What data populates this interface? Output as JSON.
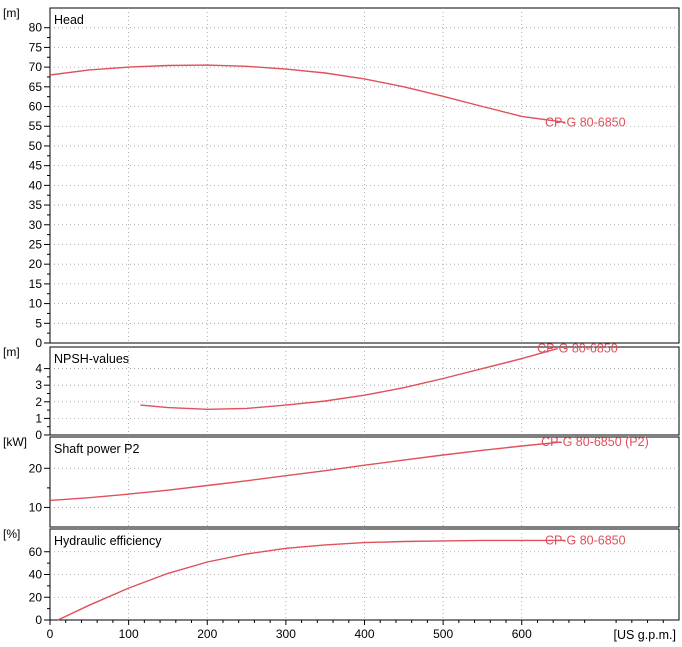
{
  "chart_data": {
    "type": "line",
    "xlim": [
      0,
      800
    ],
    "x_ticks": [
      0,
      100,
      200,
      300,
      400,
      500,
      600
    ],
    "x_unit": "[US g.p.m.]",
    "curve_color": "#e0505a",
    "panels": [
      {
        "title": "Head",
        "unit": "[m]",
        "ylim": [
          0,
          85
        ],
        "y_ticks": [
          0,
          5,
          10,
          15,
          20,
          25,
          30,
          35,
          40,
          45,
          50,
          55,
          60,
          65,
          70,
          75,
          80
        ],
        "grid": true,
        "series": [
          {
            "name": "CP-G 80-6850",
            "points": [
              [
                0,
                68.0
              ],
              [
                50,
                69.3
              ],
              [
                100,
                70.0
              ],
              [
                150,
                70.4
              ],
              [
                200,
                70.5
              ],
              [
                250,
                70.2
              ],
              [
                300,
                69.5
              ],
              [
                350,
                68.5
              ],
              [
                400,
                67.0
              ],
              [
                450,
                65.0
              ],
              [
                500,
                62.6
              ],
              [
                550,
                60.0
              ],
              [
                600,
                57.5
              ],
              [
                655,
                56.0
              ]
            ]
          }
        ]
      },
      {
        "title": "NPSH-values",
        "unit": "[m]",
        "ylim": [
          0,
          5.3
        ],
        "y_ticks": [
          0,
          1,
          2,
          3,
          4
        ],
        "grid": true,
        "series": [
          {
            "name": "CP-G 80-6850",
            "points": [
              [
                115,
                1.8
              ],
              [
                150,
                1.65
              ],
              [
                200,
                1.55
              ],
              [
                250,
                1.6
              ],
              [
                300,
                1.8
              ],
              [
                350,
                2.05
              ],
              [
                400,
                2.4
              ],
              [
                450,
                2.85
              ],
              [
                500,
                3.4
              ],
              [
                550,
                4.0
              ],
              [
                600,
                4.6
              ],
              [
                645,
                5.2
              ]
            ]
          }
        ]
      },
      {
        "title": "Shaft power P2",
        "unit": "[kW]",
        "ylim": [
          5,
          28
        ],
        "y_ticks": [
          10,
          20
        ],
        "grid": true,
        "series": [
          {
            "name": "CP-G 80-6850 (P2)",
            "points": [
              [
                0,
                11.8
              ],
              [
                50,
                12.5
              ],
              [
                100,
                13.4
              ],
              [
                150,
                14.4
              ],
              [
                200,
                15.6
              ],
              [
                250,
                16.8
              ],
              [
                300,
                18.1
              ],
              [
                350,
                19.4
              ],
              [
                400,
                20.8
              ],
              [
                450,
                22.1
              ],
              [
                500,
                23.4
              ],
              [
                550,
                24.6
              ],
              [
                600,
                25.7
              ],
              [
                650,
                26.7
              ]
            ]
          }
        ]
      },
      {
        "title": "Hydraulic efficiency",
        "unit": "[%]",
        "ylim": [
          0,
          80
        ],
        "y_ticks": [
          0,
          20,
          40,
          60
        ],
        "grid": true,
        "series": [
          {
            "name": "CP-G 80-6850",
            "points": [
              [
                10,
                0
              ],
              [
                50,
                13
              ],
              [
                100,
                28
              ],
              [
                150,
                41
              ],
              [
                200,
                51
              ],
              [
                250,
                58
              ],
              [
                300,
                63
              ],
              [
                350,
                66
              ],
              [
                400,
                68
              ],
              [
                450,
                69
              ],
              [
                500,
                69.5
              ],
              [
                550,
                70
              ],
              [
                600,
                70
              ],
              [
                655,
                70
              ]
            ]
          }
        ]
      }
    ]
  }
}
